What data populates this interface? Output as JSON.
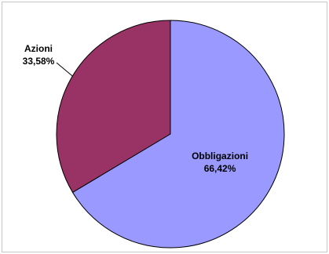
{
  "chart_data": {
    "type": "pie",
    "categories": [
      "Azioni",
      "Obbligazioni"
    ],
    "values": [
      33.58,
      66.42
    ],
    "value_labels": [
      "33,58%",
      "66,42%"
    ],
    "colors": [
      "#993366",
      "#9999ff"
    ],
    "title": "",
    "legend": "none",
    "start_angle_deg": 0,
    "direction": "counterclockwise"
  }
}
